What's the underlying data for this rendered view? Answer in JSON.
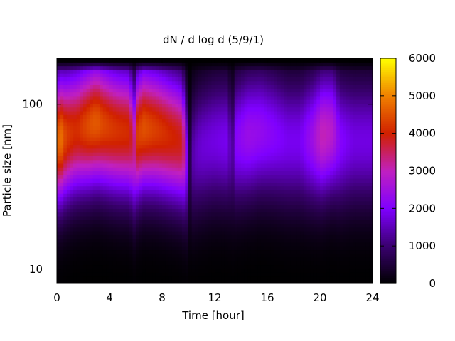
{
  "chart_data": {
    "type": "heatmap",
    "title": "dN / d log d (5/9/1)",
    "xlabel": "Time [hour]",
    "ylabel": "Particle size [nm]",
    "x_range": [
      0,
      24
    ],
    "x_ticks": [
      0,
      4,
      8,
      12,
      16,
      20,
      24
    ],
    "y_scale": "log",
    "y_range": [
      8.2,
      190
    ],
    "y_ticks": [
      {
        "value": 10,
        "label": "10"
      },
      {
        "value": 100,
        "label": "100"
      }
    ],
    "colorbar": {
      "range": [
        0,
        6000
      ],
      "ticks": [
        0,
        1000,
        2000,
        3000,
        4000,
        5000,
        6000
      ],
      "palette": [
        "#000000",
        "#3a0070",
        "#7f00ff",
        "#c020c0",
        "#d02000",
        "#f08000",
        "#ffff00"
      ]
    },
    "time_profile": [
      {
        "t": 0.0,
        "peak": 4600,
        "d": 60
      },
      {
        "t": 0.3,
        "peak": 4900,
        "d": 62
      },
      {
        "t": 0.7,
        "peak": 4300,
        "d": 65
      },
      {
        "t": 1.5,
        "peak": 4100,
        "d": 70
      },
      {
        "t": 2.5,
        "peak": 4500,
        "d": 75
      },
      {
        "t": 3.0,
        "peak": 4600,
        "d": 78
      },
      {
        "t": 3.5,
        "peak": 4400,
        "d": 75
      },
      {
        "t": 4.5,
        "peak": 4200,
        "d": 70
      },
      {
        "t": 5.5,
        "peak": 4100,
        "d": 68
      },
      {
        "t": 5.9,
        "peak": 3300,
        "d": 55
      },
      {
        "t": 6.1,
        "peak": 4300,
        "d": 65
      },
      {
        "t": 6.6,
        "peak": 4500,
        "d": 72
      },
      {
        "t": 7.5,
        "peak": 4300,
        "d": 70
      },
      {
        "t": 8.5,
        "peak": 4100,
        "d": 65
      },
      {
        "t": 9.5,
        "peak": 3900,
        "d": 60
      },
      {
        "t": 9.8,
        "peak": 2800,
        "d": 50
      },
      {
        "t": 10.05,
        "peak": 500,
        "d": 40
      },
      {
        "t": 10.4,
        "peak": 1500,
        "d": 50
      },
      {
        "t": 11.0,
        "peak": 1700,
        "d": 55
      },
      {
        "t": 12.0,
        "peak": 1800,
        "d": 60
      },
      {
        "t": 13.0,
        "peak": 1900,
        "d": 60
      },
      {
        "t": 13.3,
        "peak": 1100,
        "d": 50
      },
      {
        "t": 13.6,
        "peak": 2100,
        "d": 60
      },
      {
        "t": 14.5,
        "peak": 2400,
        "d": 65
      },
      {
        "t": 15.5,
        "peak": 2300,
        "d": 68
      },
      {
        "t": 16.5,
        "peak": 2100,
        "d": 65
      },
      {
        "t": 17.5,
        "peak": 1900,
        "d": 60
      },
      {
        "t": 18.5,
        "peak": 1900,
        "d": 60
      },
      {
        "t": 19.5,
        "peak": 2500,
        "d": 62
      },
      {
        "t": 20.2,
        "peak": 3100,
        "d": 65
      },
      {
        "t": 21.0,
        "peak": 2800,
        "d": 68
      },
      {
        "t": 21.5,
        "peak": 2100,
        "d": 60
      },
      {
        "t": 22.5,
        "peak": 1800,
        "d": 60
      },
      {
        "t": 24.0,
        "peak": 1800,
        "d": 60
      }
    ]
  }
}
